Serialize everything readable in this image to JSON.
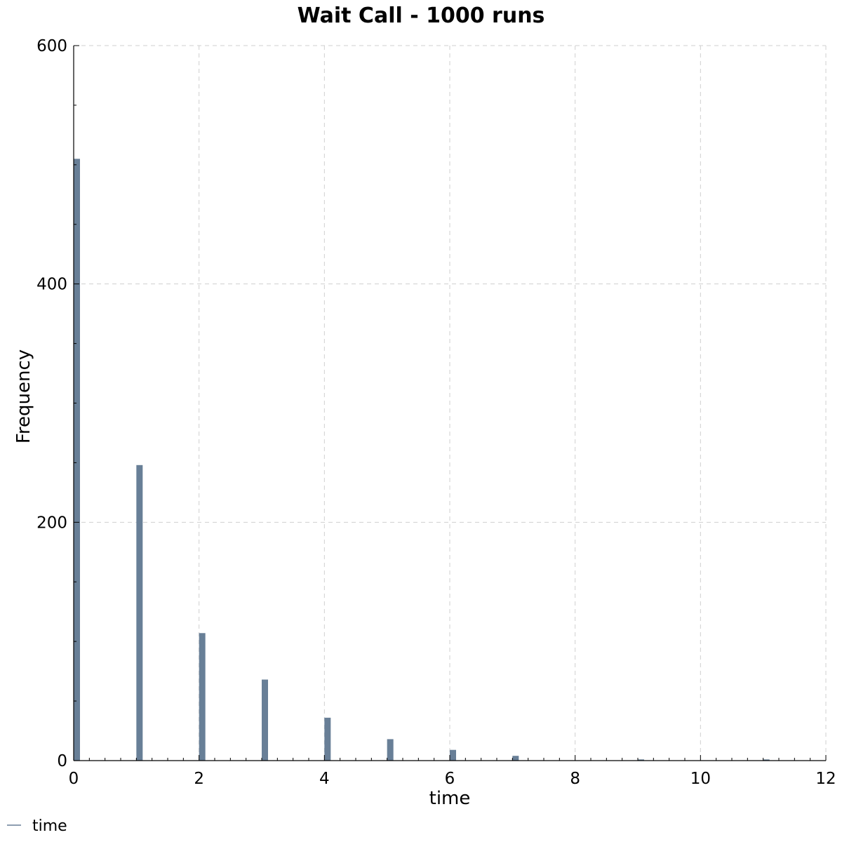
{
  "chart_data": {
    "type": "bar",
    "title": "Wait Call - 1000 runs",
    "xlabel": "time",
    "ylabel": "Frequency",
    "x": [
      0,
      1,
      2,
      3,
      4,
      5,
      6,
      7,
      8,
      9,
      10,
      11
    ],
    "values": [
      505,
      248,
      107,
      68,
      36,
      18,
      9,
      4,
      0,
      1,
      0,
      1
    ],
    "xlim": [
      0,
      12
    ],
    "ylim": [
      0,
      600
    ],
    "xticks": [
      "0",
      "2",
      "4",
      "6",
      "8",
      "10",
      "12"
    ],
    "yticks": [
      "0",
      "200",
      "400",
      "600"
    ],
    "grid": true,
    "legend": {
      "placement": "bottom-left",
      "entries": [
        "time"
      ]
    },
    "colors": {
      "bar": "#687f97",
      "grid": "#cfcfcf",
      "legend_line": "#687f97"
    }
  }
}
